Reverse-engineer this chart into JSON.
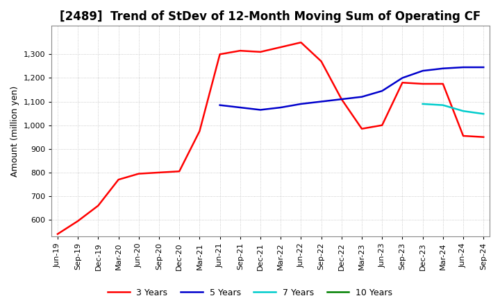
{
  "title": "[2489]  Trend of StDev of 12-Month Moving Sum of Operating CF",
  "ylabel": "Amount (million yen)",
  "ylim": [
    530,
    1420
  ],
  "yticks": [
    600,
    700,
    800,
    900,
    1000,
    1100,
    1200,
    1300
  ],
  "background_color": "#ffffff",
  "grid_color": "#bbbbbb",
  "series": {
    "3years": {
      "color": "#ff0000",
      "label": "3 Years",
      "y": [
        540,
        595,
        660,
        770,
        795,
        800,
        805,
        975,
        1300,
        1315,
        1310,
        1330,
        1350,
        1270,
        1110,
        985,
        1000,
        1180,
        1175,
        1175,
        955,
        950
      ]
    },
    "5years": {
      "color": "#0000cc",
      "label": "5 Years",
      "y": [
        null,
        null,
        null,
        null,
        null,
        null,
        null,
        null,
        1085,
        1075,
        1065,
        1075,
        1090,
        1100,
        1110,
        1120,
        1145,
        1200,
        1230,
        1240,
        1245,
        1245
      ]
    },
    "7years": {
      "color": "#00cccc",
      "label": "7 Years",
      "y": [
        null,
        null,
        null,
        null,
        null,
        null,
        null,
        null,
        null,
        null,
        null,
        null,
        null,
        null,
        null,
        null,
        null,
        null,
        1090,
        1085,
        1060,
        1048
      ]
    },
    "10years": {
      "color": "#008000",
      "label": "10 Years",
      "y": [
        null,
        null,
        null,
        null,
        null,
        null,
        null,
        null,
        null,
        null,
        null,
        null,
        null,
        null,
        null,
        null,
        null,
        null,
        null,
        null,
        null,
        null
      ]
    }
  },
  "xtick_labels": [
    "Jun-19",
    "Sep-19",
    "Dec-19",
    "Mar-20",
    "Jun-20",
    "Sep-20",
    "Dec-20",
    "Mar-21",
    "Jun-21",
    "Sep-21",
    "Dec-21",
    "Mar-22",
    "Jun-22",
    "Sep-22",
    "Dec-22",
    "Mar-23",
    "Jun-23",
    "Sep-23",
    "Dec-23",
    "Mar-24",
    "Jun-24",
    "Sep-24"
  ],
  "title_fontsize": 12,
  "axis_fontsize": 9,
  "tick_fontsize": 8,
  "legend_fontsize": 9
}
